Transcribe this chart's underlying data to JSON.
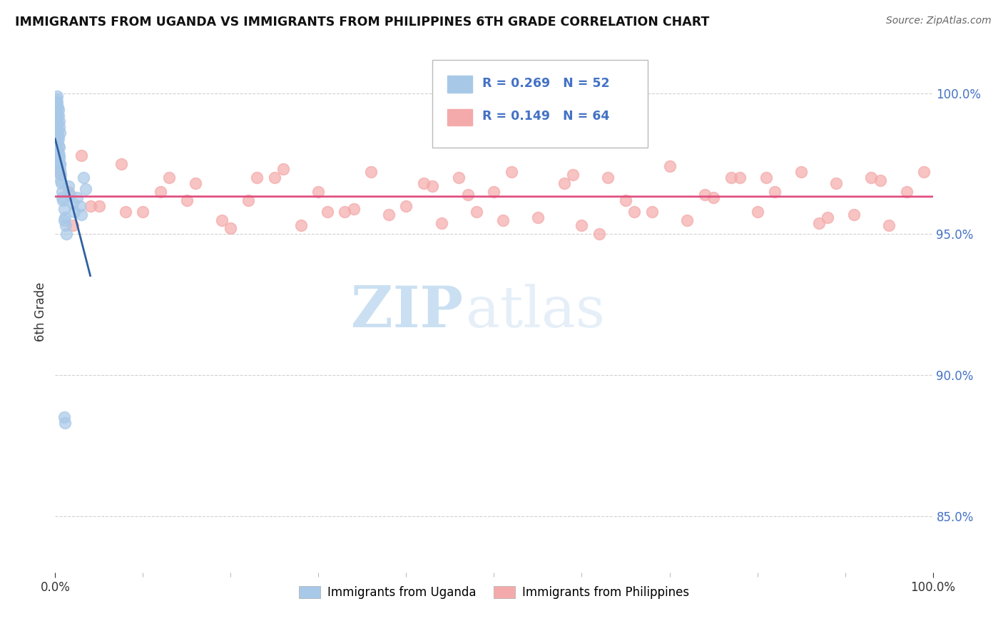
{
  "title": "IMMIGRANTS FROM UGANDA VS IMMIGRANTS FROM PHILIPPINES 6TH GRADE CORRELATION CHART",
  "source": "Source: ZipAtlas.com",
  "ylabel": "6th Grade",
  "legend_label1": "Immigrants from Uganda",
  "legend_label2": "Immigrants from Philippines",
  "R1": 0.269,
  "N1": 52,
  "R2": 0.149,
  "N2": 64,
  "color_uganda": "#a8c8e8",
  "color_philippines": "#f4aaaa",
  "trend_color_uganda": "#3060a0",
  "trend_color_philippines": "#e05080",
  "xlim": [
    0.0,
    100.0
  ],
  "ylim": [
    83.0,
    101.5
  ],
  "right_yticks": [
    85.0,
    90.0,
    95.0,
    100.0
  ],
  "right_ytick_labels": [
    "85.0%",
    "90.0%",
    "95.0%",
    "100.0%"
  ],
  "background_color": "#ffffff",
  "grid_color": "#cccccc",
  "watermark_zip": "ZIP",
  "watermark_atlas": "atlas",
  "uganda_x": [
    0.1,
    0.15,
    0.2,
    0.25,
    0.3,
    0.35,
    0.4,
    0.45,
    0.5,
    0.55,
    0.12,
    0.18,
    0.22,
    0.28,
    0.32,
    0.38,
    0.42,
    0.48,
    0.52,
    0.58,
    0.08,
    0.14,
    0.19,
    0.24,
    0.31,
    0.36,
    0.43,
    0.47,
    0.53,
    0.57,
    0.6,
    0.7,
    0.8,
    0.9,
    1.0,
    1.1,
    1.2,
    1.3,
    1.5,
    1.7,
    2.0,
    2.2,
    2.5,
    2.8,
    3.0,
    3.2,
    3.5,
    0.65,
    0.75,
    1.0,
    1.0,
    1.1
  ],
  "uganda_y": [
    99.8,
    99.6,
    99.9,
    99.7,
    99.5,
    99.4,
    99.2,
    99.0,
    98.8,
    98.6,
    99.3,
    99.1,
    98.9,
    98.5,
    98.3,
    98.1,
    97.9,
    97.7,
    97.5,
    97.3,
    99.6,
    99.4,
    99.2,
    99.0,
    98.7,
    98.4,
    98.1,
    97.8,
    97.5,
    97.2,
    97.1,
    96.8,
    96.5,
    96.2,
    95.9,
    95.6,
    95.3,
    95.0,
    96.7,
    96.4,
    96.1,
    95.8,
    96.3,
    96.0,
    95.7,
    97.0,
    96.6,
    96.9,
    96.3,
    95.5,
    88.5,
    88.3
  ],
  "philippines_x": [
    0.3,
    1.5,
    3.0,
    5.0,
    7.5,
    10.0,
    13.0,
    16.0,
    19.0,
    22.0,
    25.0,
    28.0,
    30.0,
    33.0,
    36.0,
    38.0,
    40.0,
    42.0,
    44.0,
    46.0,
    48.0,
    50.0,
    52.0,
    55.0,
    58.0,
    60.0,
    63.0,
    65.0,
    68.0,
    70.0,
    72.0,
    75.0,
    78.0,
    80.0,
    82.0,
    85.0,
    87.0,
    89.0,
    91.0,
    93.0,
    95.0,
    97.0,
    99.0,
    4.0,
    8.0,
    12.0,
    20.0,
    26.0,
    34.0,
    43.0,
    51.0,
    59.0,
    66.0,
    74.0,
    81.0,
    88.0,
    94.0,
    2.0,
    15.0,
    23.0,
    31.0,
    47.0,
    62.0,
    77.0
  ],
  "philippines_y": [
    97.2,
    96.5,
    97.8,
    96.0,
    97.5,
    95.8,
    97.0,
    96.8,
    95.5,
    96.2,
    97.0,
    95.3,
    96.5,
    95.8,
    97.2,
    95.7,
    96.0,
    96.8,
    95.4,
    97.0,
    95.8,
    96.5,
    97.2,
    95.6,
    96.8,
    95.3,
    97.0,
    96.2,
    95.8,
    97.4,
    95.5,
    96.3,
    97.0,
    95.8,
    96.5,
    97.2,
    95.4,
    96.8,
    95.7,
    97.0,
    95.3,
    96.5,
    97.2,
    96.0,
    95.8,
    96.5,
    95.2,
    97.3,
    95.9,
    96.7,
    95.5,
    97.1,
    95.8,
    96.4,
    97.0,
    95.6,
    96.9,
    95.3,
    96.2,
    97.0,
    95.8,
    96.4,
    95.0,
    97.0
  ]
}
